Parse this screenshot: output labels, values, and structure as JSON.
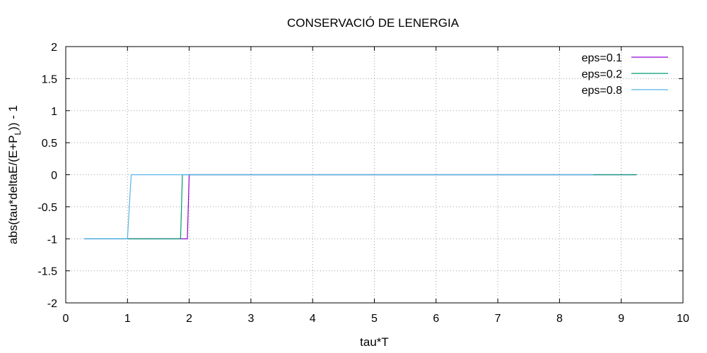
{
  "chart_data": {
    "type": "line",
    "title": "CONSERVACIÓ DE LENERGIA",
    "xlabel": "tau*T",
    "ylabel_parts": {
      "before": "abs(tau*deltaE/(E+P",
      "sub": "L",
      "after": ")) - 1"
    },
    "xlim": [
      0,
      10
    ],
    "ylim": [
      -2,
      2
    ],
    "xticks": [
      0,
      1,
      2,
      3,
      4,
      5,
      6,
      7,
      8,
      9,
      10
    ],
    "yticks": [
      2,
      1.5,
      1,
      0.5,
      0,
      -0.5,
      -1,
      -1.5,
      -2
    ],
    "xtick_labels": [
      "0",
      "1",
      "2",
      "3",
      "4",
      "5",
      "6",
      "7",
      "8",
      "9",
      "10"
    ],
    "ytick_labels": [
      "2",
      "1.5",
      "1",
      "0.5",
      "0",
      "-0.5",
      "-1",
      "-1.5",
      "-2"
    ],
    "grid": true,
    "legend_position": "top-right",
    "series": [
      {
        "name": "eps=0.1",
        "color": "#9400d3",
        "x": [
          0.3,
          1.97,
          2.0,
          9.25
        ],
        "y": [
          -1,
          -1,
          0,
          0
        ]
      },
      {
        "name": "eps=0.2",
        "color": "#009e73",
        "x": [
          0.3,
          1.86,
          1.89,
          9.25
        ],
        "y": [
          -1,
          -1,
          0,
          0
        ]
      },
      {
        "name": "eps=0.8",
        "color": "#56b4e9",
        "x": [
          0.3,
          1.0,
          1.06,
          8.55
        ],
        "y": [
          -1,
          -1,
          0,
          0
        ]
      }
    ]
  }
}
